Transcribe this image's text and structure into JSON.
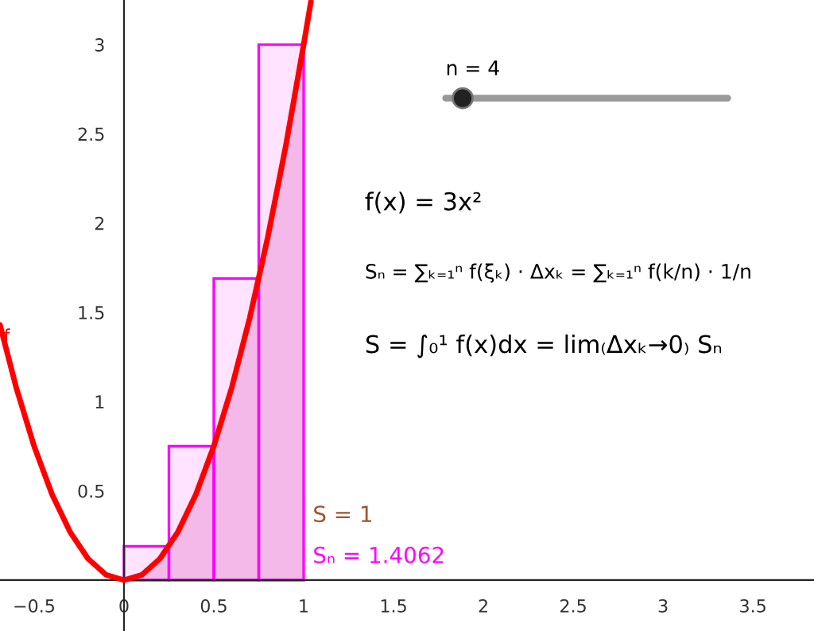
{
  "chart_data": {
    "type": "bar",
    "xlim": [
      -0.69,
      3.84
    ],
    "ylim": [
      -0.285,
      3.25
    ],
    "xticks": [
      {
        "value": -0.5,
        "label": "−0.5"
      },
      0,
      0.5,
      1,
      1.5,
      2,
      2.5,
      3,
      3.5
    ],
    "yticks": [
      0.5,
      1,
      1.5,
      2,
      2.5,
      3
    ],
    "grid": false,
    "legend": false,
    "series": [
      {
        "type": "area",
        "color": "#f3d0e6",
        "x": [
          0,
          0.1,
          0.2,
          0.3,
          0.4,
          0.5,
          0.6,
          0.7,
          0.8,
          0.9,
          1.0
        ],
        "values": [
          0,
          0.03,
          0.12,
          0.27,
          0.48,
          0.75,
          1.08,
          1.47,
          1.92,
          2.43,
          3.0
        ]
      },
      {
        "color": "#ff00ff",
        "x": [
          0.125,
          0.375,
          0.625,
          0.875
        ],
        "values": [
          0.19,
          0.75,
          1.69,
          3
        ]
      },
      {
        "type": "line",
        "name": "f",
        "color": "#ff0000",
        "x": [
          -0.69,
          -0.6,
          -0.5,
          -0.4,
          -0.3,
          -0.2,
          -0.1,
          0,
          0.1,
          0.2,
          0.3,
          0.4,
          0.5,
          0.6,
          0.7,
          0.8,
          0.9,
          1.0,
          1.04
        ],
        "values": [
          1.43,
          1.08,
          0.75,
          0.48,
          0.27,
          0.12,
          0.03,
          0,
          0.03,
          0.12,
          0.27,
          0.48,
          0.75,
          1.08,
          1.47,
          1.92,
          2.43,
          3.0,
          3.24
        ]
      }
    ],
    "annotations": [
      "n = 4",
      "f(x) = 3x²",
      "Sₙ = ∑ₖ₌₁ⁿ f(ξₖ) · Δxₖ = ∑ₖ₌₁ⁿ f(k/n) · 1/n",
      "S = ∫₀¹ f(x)dx = lim₍Δxₖ→0₎ Sₙ",
      "S = 1",
      "Sₙ = 1.4062"
    ]
  }
}
